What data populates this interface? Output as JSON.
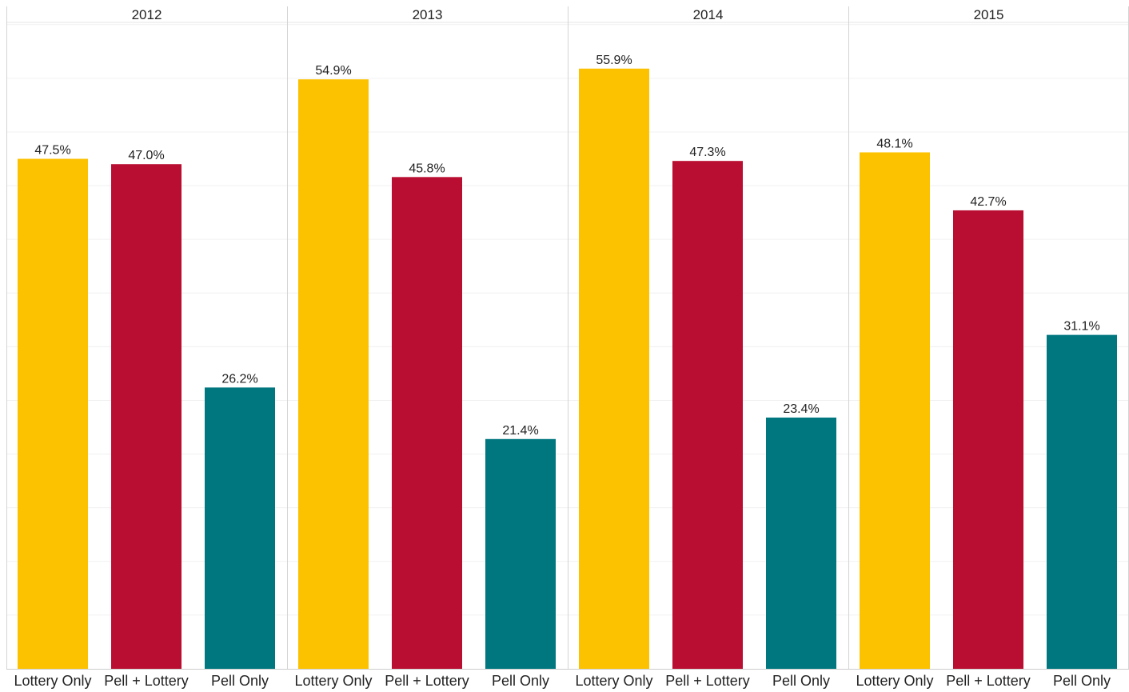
{
  "chart_data": {
    "type": "bar",
    "panels": [
      "2012",
      "2013",
      "2014",
      "2015"
    ],
    "categories": [
      "Lottery Only",
      "Pell + Lottery",
      "Pell Only"
    ],
    "series_colors": [
      "#fcc200",
      "#b90e31",
      "#00777f"
    ],
    "values": [
      [
        47.5,
        47.0,
        26.2
      ],
      [
        54.9,
        45.8,
        21.4
      ],
      [
        55.9,
        47.3,
        23.4
      ],
      [
        48.1,
        42.7,
        31.1
      ]
    ],
    "value_labels": [
      [
        "47.5%",
        "47.0%",
        "26.2%"
      ],
      [
        "54.9%",
        "45.8%",
        "21.4%"
      ],
      [
        "55.9%",
        "47.3%",
        "23.4%"
      ],
      [
        "48.1%",
        "42.7%",
        "31.1%"
      ]
    ],
    "ylim": [
      0,
      62
    ],
    "grid": true,
    "title": "",
    "xlabel": "",
    "ylabel": ""
  }
}
